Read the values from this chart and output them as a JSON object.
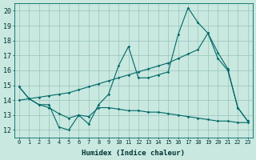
{
  "xlabel": "Humidex (Indice chaleur)",
  "ylabel": "",
  "bg_color": "#c8e8e0",
  "grid_color": "#a0c8c0",
  "line_color": "#006868",
  "xlim": [
    -0.5,
    23.5
  ],
  "ylim": [
    11.5,
    20.5
  ],
  "xticks": [
    0,
    1,
    2,
    3,
    4,
    5,
    6,
    7,
    8,
    9,
    10,
    11,
    12,
    13,
    14,
    15,
    16,
    17,
    18,
    19,
    20,
    21,
    22,
    23
  ],
  "yticks": [
    12,
    13,
    14,
    15,
    16,
    17,
    18,
    19,
    20
  ],
  "line1_x": [
    0,
    1,
    2,
    3,
    4,
    5,
    6,
    7,
    8,
    9,
    10,
    11,
    12,
    13,
    14,
    15,
    16,
    17,
    18,
    19,
    20,
    21,
    22,
    23
  ],
  "line1_y": [
    14.9,
    14.1,
    13.7,
    13.7,
    12.2,
    12.0,
    13.0,
    12.4,
    13.7,
    14.4,
    16.3,
    17.6,
    15.5,
    15.5,
    15.7,
    15.9,
    18.4,
    20.2,
    19.2,
    18.5,
    16.8,
    16.0,
    13.5,
    12.6
  ],
  "line2_x": [
    0,
    1,
    2,
    3,
    4,
    5,
    6,
    7,
    8,
    9,
    10,
    11,
    12,
    13,
    14,
    15,
    16,
    17,
    18,
    19,
    20,
    21,
    22,
    23
  ],
  "line2_y": [
    14.0,
    14.1,
    14.2,
    14.3,
    14.4,
    14.5,
    14.7,
    14.9,
    15.1,
    15.3,
    15.5,
    15.7,
    15.9,
    16.1,
    16.3,
    16.5,
    16.8,
    17.1,
    17.4,
    18.5,
    17.2,
    16.1,
    13.5,
    12.6
  ],
  "line3_x": [
    0,
    1,
    2,
    3,
    4,
    5,
    6,
    7,
    8,
    9,
    10,
    11,
    12,
    13,
    14,
    15,
    16,
    17,
    18,
    19,
    20,
    21,
    22,
    23
  ],
  "line3_y": [
    14.9,
    14.1,
    13.7,
    13.5,
    13.1,
    12.8,
    13.0,
    12.9,
    13.5,
    13.5,
    13.4,
    13.3,
    13.3,
    13.2,
    13.2,
    13.1,
    13.0,
    12.9,
    12.8,
    12.7,
    12.6,
    12.6,
    12.5,
    12.5
  ],
  "figwidth": 3.2,
  "figheight": 2.0,
  "dpi": 100
}
